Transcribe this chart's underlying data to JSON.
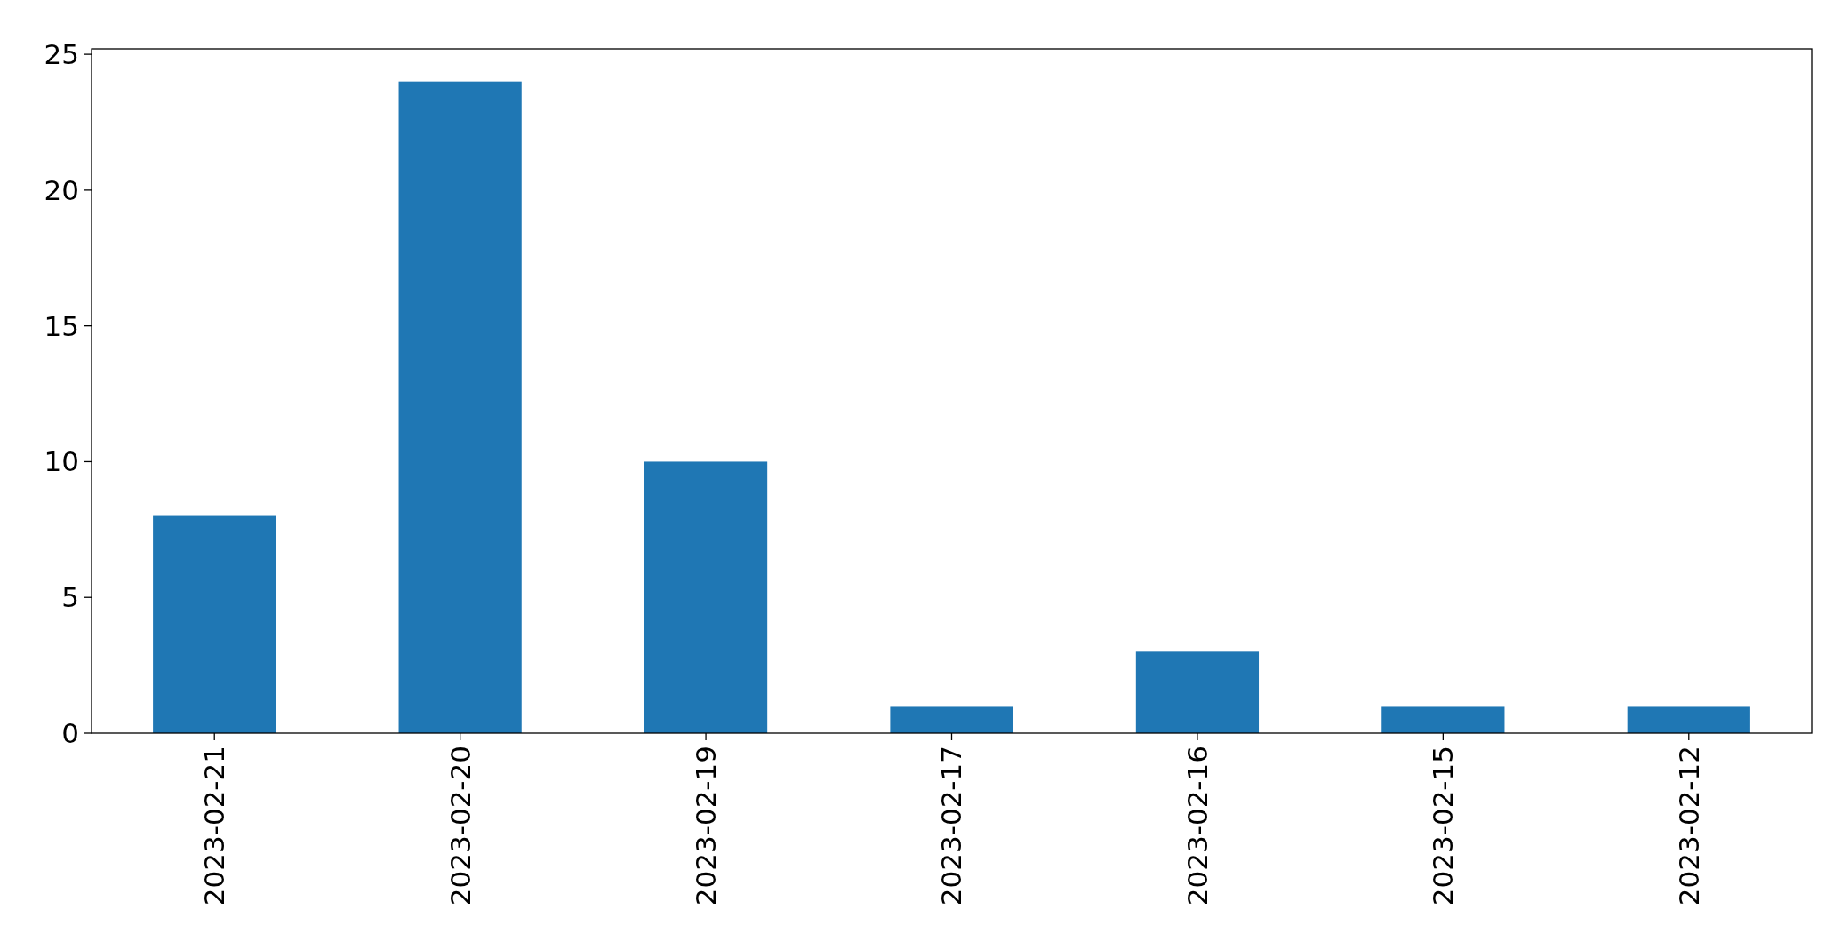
{
  "chart_data": {
    "type": "bar",
    "categories": [
      "2023-02-21",
      "2023-02-20",
      "2023-02-19",
      "2023-02-17",
      "2023-02-16",
      "2023-02-15",
      "2023-02-12"
    ],
    "values": [
      8,
      24,
      10,
      1,
      3,
      1,
      1
    ],
    "color": "#1f77b4",
    "ylim": [
      0,
      25.2
    ],
    "yticks": [
      0,
      5,
      10,
      15,
      20,
      25
    ]
  }
}
